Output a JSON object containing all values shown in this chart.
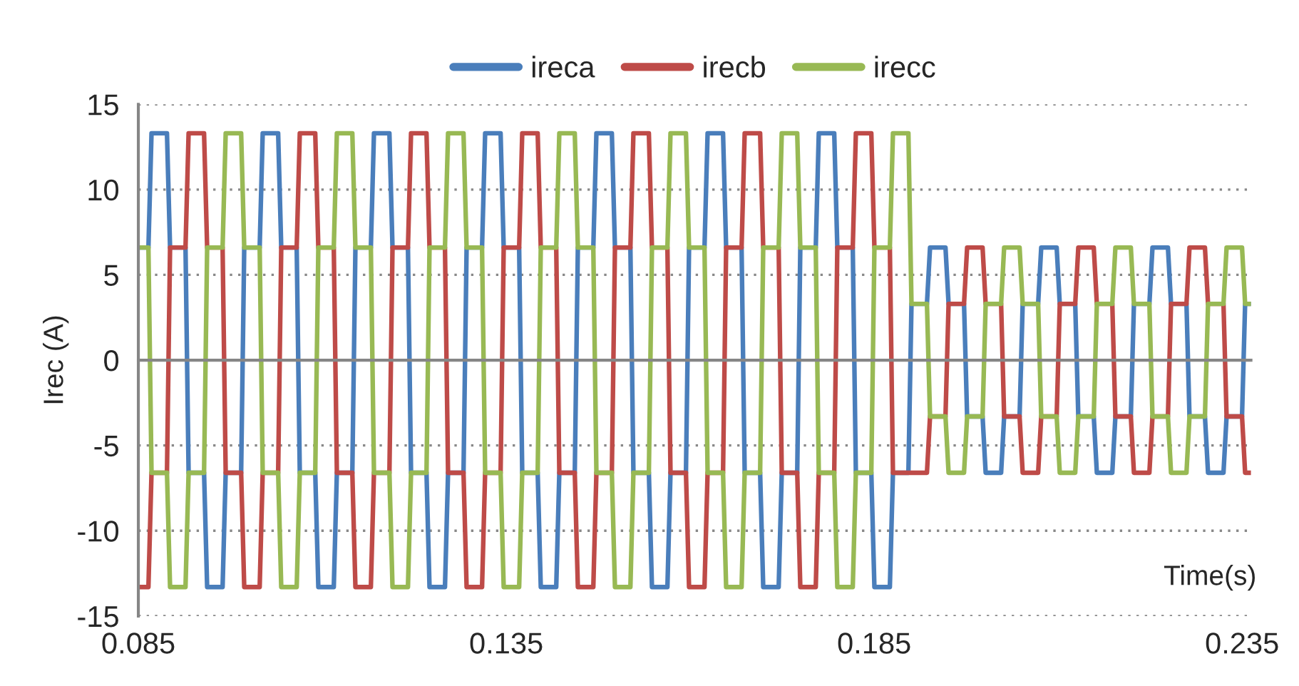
{
  "chart_data": {
    "type": "line",
    "xlabel": "Time(s)",
    "ylabel": "Irec (A)",
    "xlim": [
      0.085,
      0.2362
    ],
    "xticks": [
      0.085,
      0.135,
      0.185,
      0.235
    ],
    "ylim": [
      -15,
      15
    ],
    "yticks": [
      -15,
      -10,
      -5,
      0,
      5,
      10,
      15
    ],
    "grid": "y",
    "legend": "top",
    "line_style": "solid",
    "marker": "none",
    "x": [
      0.085,
      0.08637,
      0.08679,
      0.08889,
      0.08931,
      0.09141,
      0.09183,
      0.09393,
      0.09435,
      0.09645,
      0.09687,
      0.09897,
      0.09939,
      0.10149,
      0.1019,
      0.104,
      0.10442,
      0.10652,
      0.10694,
      0.10904,
      0.10946,
      0.11156,
      0.11198,
      0.11408,
      0.1145,
      0.1166,
      0.11702,
      0.11912,
      0.11954,
      0.12164,
      0.12206,
      0.12416,
      0.12457,
      0.12667,
      0.12709,
      0.12919,
      0.12961,
      0.13171,
      0.13213,
      0.13423,
      0.13465,
      0.13675,
      0.13717,
      0.13927,
      0.13969,
      0.14179,
      0.14221,
      0.14431,
      0.14473,
      0.14683,
      0.14725,
      0.14935,
      0.14977,
      0.15187,
      0.15228,
      0.15438,
      0.1548,
      0.1569,
      0.15732,
      0.15942,
      0.15984,
      0.16194,
      0.16236,
      0.16446,
      0.16488,
      0.16698,
      0.1674,
      0.1695,
      0.16992,
      0.17202,
      0.17244,
      0.17454,
      0.17496,
      0.17706,
      0.17747,
      0.17957,
      0.17999,
      0.18209,
      0.18251,
      0.18461,
      0.18503,
      0.18713,
      0.18755,
      0.18965,
      0.19007,
      0.19217,
      0.19259,
      0.19469,
      0.19511,
      0.19721,
      0.19763,
      0.19973,
      0.20015,
      0.20225,
      0.20266,
      0.20476,
      0.20518,
      0.20728,
      0.2077,
      0.2098,
      0.21022,
      0.21232,
      0.21274,
      0.21484,
      0.21526,
      0.21736,
      0.21778,
      0.21988,
      0.2203,
      0.2224,
      0.22282,
      0.22492,
      0.22534,
      0.22744,
      0.22785,
      0.22995,
      0.23037,
      0.23247,
      0.23289,
      0.23499,
      0.23541,
      0.2362
    ],
    "series": [
      {
        "name": "ireca",
        "color": "#4a7ebb",
        "values": [
          6.6,
          6.6,
          13.3,
          13.3,
          6.6,
          6.6,
          -6.6,
          -6.6,
          -13.3,
          -13.3,
          -6.6,
          -6.6,
          6.6,
          6.6,
          13.3,
          13.3,
          6.6,
          6.6,
          -6.6,
          -6.6,
          -13.3,
          -13.3,
          -6.6,
          -6.6,
          6.6,
          6.6,
          13.3,
          13.3,
          6.6,
          6.6,
          -6.6,
          -6.6,
          -13.3,
          -13.3,
          -6.6,
          -6.6,
          6.6,
          6.6,
          13.3,
          13.3,
          6.6,
          6.6,
          -6.6,
          -6.6,
          -13.3,
          -13.3,
          -6.6,
          -6.6,
          6.6,
          6.6,
          13.3,
          13.3,
          6.6,
          6.6,
          -6.6,
          -6.6,
          -13.3,
          -13.3,
          -6.6,
          -6.6,
          6.6,
          6.6,
          13.3,
          13.3,
          6.6,
          6.6,
          -6.6,
          -6.6,
          -13.3,
          -13.3,
          -6.6,
          -6.6,
          6.6,
          6.6,
          13.3,
          13.3,
          6.6,
          6.6,
          -6.6,
          -6.6,
          -13.3,
          -13.3,
          -6.6,
          -6.6,
          3.3,
          3.3,
          6.6,
          6.6,
          3.3,
          3.3,
          -3.3,
          -3.3,
          -6.6,
          -6.6,
          -3.3,
          -3.3,
          3.3,
          3.3,
          6.6,
          6.6,
          3.3,
          3.3,
          -3.3,
          -3.3,
          -6.6,
          -6.6,
          -3.3,
          -3.3,
          3.3,
          3.3,
          6.6,
          6.6,
          3.3,
          3.3,
          -3.3,
          -3.3,
          -6.6,
          -6.6,
          -3.3,
          -3.3,
          3.3,
          3.3
        ]
      },
      {
        "name": "irecb",
        "color": "#be4b48",
        "values": [
          -13.3,
          -13.3,
          -6.6,
          -6.6,
          6.6,
          6.6,
          13.3,
          13.3,
          6.6,
          6.6,
          -6.6,
          -6.6,
          -13.3,
          -13.3,
          -6.6,
          -6.6,
          6.6,
          6.6,
          13.3,
          13.3,
          6.6,
          6.6,
          -6.6,
          -6.6,
          -13.3,
          -13.3,
          -6.6,
          -6.6,
          6.6,
          6.6,
          13.3,
          13.3,
          6.6,
          6.6,
          -6.6,
          -6.6,
          -13.3,
          -13.3,
          -6.6,
          -6.6,
          6.6,
          6.6,
          13.3,
          13.3,
          6.6,
          6.6,
          -6.6,
          -6.6,
          -13.3,
          -13.3,
          -6.6,
          -6.6,
          6.6,
          6.6,
          13.3,
          13.3,
          6.6,
          6.6,
          -6.6,
          -6.6,
          -13.3,
          -13.3,
          -6.6,
          -6.6,
          6.6,
          6.6,
          13.3,
          13.3,
          6.6,
          6.6,
          -6.6,
          -6.6,
          -13.3,
          -13.3,
          -6.6,
          -6.6,
          6.6,
          6.6,
          13.3,
          13.3,
          6.6,
          6.6,
          -6.6,
          -6.6,
          -6.6,
          -6.6,
          -3.3,
          -3.3,
          3.3,
          3.3,
          6.6,
          6.6,
          3.3,
          3.3,
          -3.3,
          -3.3,
          -6.6,
          -6.6,
          -3.3,
          -3.3,
          3.3,
          3.3,
          6.6,
          6.6,
          3.3,
          3.3,
          -3.3,
          -3.3,
          -6.6,
          -6.6,
          -3.3,
          -3.3,
          3.3,
          3.3,
          6.6,
          6.6,
          3.3,
          3.3,
          -3.3,
          -3.3,
          -6.6,
          -6.6
        ]
      },
      {
        "name": "irecc",
        "color": "#98b954",
        "values": [
          6.6,
          6.6,
          -6.6,
          -6.6,
          -13.3,
          -13.3,
          -6.6,
          -6.6,
          6.6,
          6.6,
          13.3,
          13.3,
          6.6,
          6.6,
          -6.6,
          -6.6,
          -13.3,
          -13.3,
          -6.6,
          -6.6,
          6.6,
          6.6,
          13.3,
          13.3,
          6.6,
          6.6,
          -6.6,
          -6.6,
          -13.3,
          -13.3,
          -6.6,
          -6.6,
          6.6,
          6.6,
          13.3,
          13.3,
          6.6,
          6.6,
          -6.6,
          -6.6,
          -13.3,
          -13.3,
          -6.6,
          -6.6,
          6.6,
          6.6,
          13.3,
          13.3,
          6.6,
          6.6,
          -6.6,
          -6.6,
          -13.3,
          -13.3,
          -6.6,
          -6.6,
          6.6,
          6.6,
          13.3,
          13.3,
          6.6,
          6.6,
          -6.6,
          -6.6,
          -13.3,
          -13.3,
          -6.6,
          -6.6,
          6.6,
          6.6,
          13.3,
          13.3,
          6.6,
          6.6,
          -6.6,
          -6.6,
          -13.3,
          -13.3,
          -6.6,
          -6.6,
          6.6,
          6.6,
          13.3,
          13.3,
          3.3,
          3.3,
          -3.3,
          -3.3,
          -6.6,
          -6.6,
          -3.3,
          -3.3,
          3.3,
          3.3,
          6.6,
          6.6,
          3.3,
          3.3,
          -3.3,
          -3.3,
          -6.6,
          -6.6,
          -3.3,
          -3.3,
          3.3,
          3.3,
          6.6,
          6.6,
          3.3,
          3.3,
          -3.3,
          -3.3,
          -6.6,
          -6.6,
          -3.3,
          -3.3,
          3.3,
          3.3,
          6.6,
          6.6,
          3.3,
          3.3
        ]
      }
    ]
  }
}
